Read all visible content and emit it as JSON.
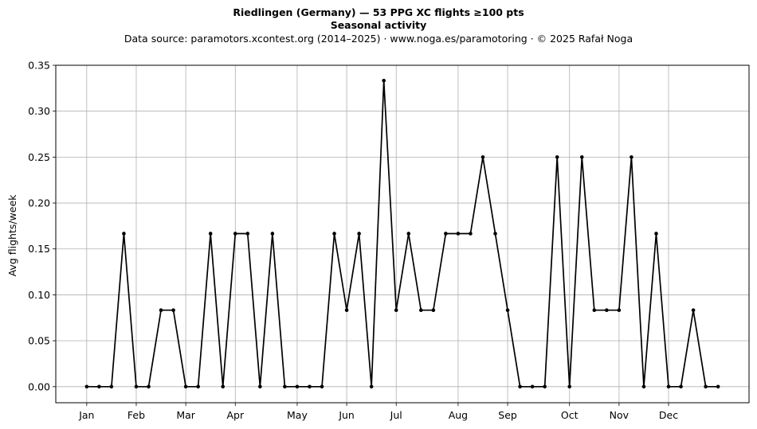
{
  "chart_data": {
    "type": "line",
    "title": "Riedlingen (Germany)  —  53 PPG XC flights ≥100 pts",
    "title_line2": "Seasonal activity",
    "subtitle": "Data source: paramotors.xcontest.org (2014–2025)  ·  www.noga.es/paramotoring  ·  © 2025 Rafał Noga",
    "xlabel": "",
    "ylabel": "Avg flights/week",
    "ylim": [
      -0.0175,
      0.35
    ],
    "xlim": [
      -1.5,
      54.5
    ],
    "yticks": [
      0.0,
      0.05,
      0.1,
      0.15,
      0.2,
      0.25,
      0.3,
      0.35
    ],
    "ytick_labels": [
      "0.00",
      "0.05",
      "0.10",
      "0.15",
      "0.20",
      "0.25",
      "0.30",
      "0.35"
    ],
    "xticks": [
      1,
      5,
      9,
      13,
      18,
      22,
      26,
      31,
      35,
      40,
      44,
      48
    ],
    "xtick_labels": [
      "Jan",
      "Feb",
      "Mar",
      "Apr",
      "May",
      "Jun",
      "Jul",
      "Aug",
      "Sep",
      "Oct",
      "Nov",
      "Dec"
    ],
    "grid": true,
    "line_color": "#000000",
    "grid_color": "#b0b0b0",
    "x": [
      1,
      2,
      3,
      4,
      5,
      6,
      7,
      8,
      9,
      10,
      11,
      12,
      13,
      14,
      15,
      16,
      17,
      18,
      19,
      20,
      21,
      22,
      23,
      24,
      25,
      26,
      27,
      28,
      29,
      30,
      31,
      32,
      33,
      34,
      35,
      36,
      37,
      38,
      39,
      40,
      41,
      42,
      43,
      44,
      45,
      46,
      47,
      48,
      49,
      50,
      51,
      52
    ],
    "values": [
      0,
      0,
      0,
      0.1667,
      0,
      0,
      0.0833,
      0.0833,
      0,
      0,
      0.1667,
      0,
      0.1667,
      0.1667,
      0,
      0.1667,
      0,
      0,
      0,
      0,
      0.1667,
      0.0833,
      0.1667,
      0,
      0.3333,
      0.0833,
      0.1667,
      0.0833,
      0.0833,
      0.1667,
      0.1667,
      0.1667,
      0.25,
      0.1667,
      0.0833,
      0,
      0,
      0,
      0.25,
      0,
      0.25,
      0.0833,
      0.0833,
      0.0833,
      0.25,
      0,
      0.1667,
      0,
      0,
      0.0833,
      0,
      0
    ]
  }
}
